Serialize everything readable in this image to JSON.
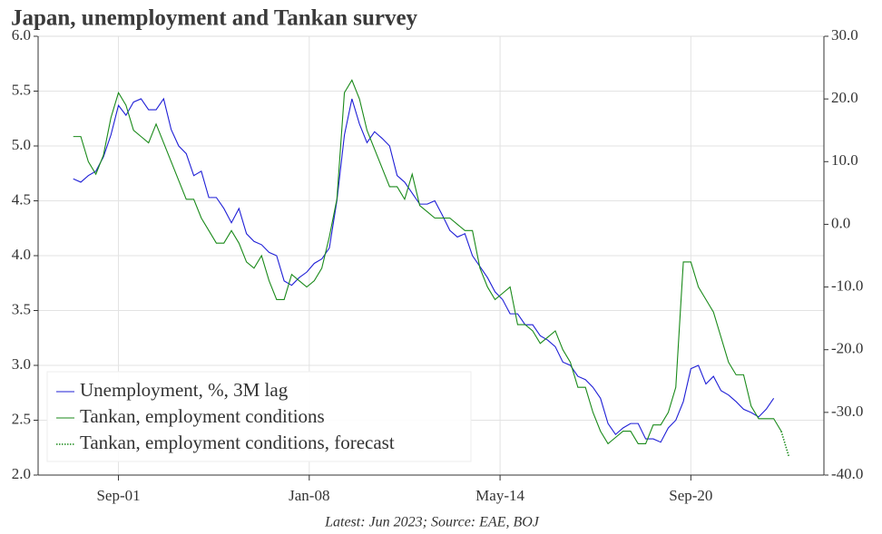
{
  "chart_data": {
    "type": "line",
    "title": "Japan, unemployment and Tankan survey",
    "source": "Latest: Jun 2023; Source: EAE, BOJ",
    "x": [
      "2000-03",
      "2000-06",
      "2000-09",
      "2000-12",
      "2001-03",
      "2001-06",
      "2001-09",
      "2001-12",
      "2002-03",
      "2002-06",
      "2002-09",
      "2002-12",
      "2003-03",
      "2003-06",
      "2003-09",
      "2003-12",
      "2004-03",
      "2004-06",
      "2004-09",
      "2004-12",
      "2005-03",
      "2005-06",
      "2005-09",
      "2005-12",
      "2006-03",
      "2006-06",
      "2006-09",
      "2006-12",
      "2007-03",
      "2007-06",
      "2007-09",
      "2007-12",
      "2008-03",
      "2008-06",
      "2008-09",
      "2008-12",
      "2009-03",
      "2009-06",
      "2009-09",
      "2009-12",
      "2010-03",
      "2010-06",
      "2010-09",
      "2010-12",
      "2011-03",
      "2011-06",
      "2011-09",
      "2011-12",
      "2012-03",
      "2012-06",
      "2012-09",
      "2012-12",
      "2013-03",
      "2013-06",
      "2013-09",
      "2013-12",
      "2014-03",
      "2014-06",
      "2014-09",
      "2014-12",
      "2015-03",
      "2015-06",
      "2015-09",
      "2015-12",
      "2016-03",
      "2016-06",
      "2016-09",
      "2016-12",
      "2017-03",
      "2017-06",
      "2017-09",
      "2017-12",
      "2018-03",
      "2018-06",
      "2018-09",
      "2018-12",
      "2019-03",
      "2019-06",
      "2019-09",
      "2019-12",
      "2020-03",
      "2020-06",
      "2020-09",
      "2020-12",
      "2021-03",
      "2021-06",
      "2021-09",
      "2021-12",
      "2022-03",
      "2022-06",
      "2022-09",
      "2022-12",
      "2023-03",
      "2023-06",
      "2023-09"
    ],
    "series": [
      {
        "name": "Unemployment, %, 3M lag",
        "color": "#1f1fd6",
        "axis": "y",
        "values": [
          4.7,
          4.67,
          4.73,
          4.77,
          4.9,
          5.1,
          5.37,
          5.28,
          5.4,
          5.43,
          5.33,
          5.33,
          5.43,
          5.15,
          5.0,
          4.93,
          4.73,
          4.77,
          4.53,
          4.53,
          4.43,
          4.3,
          4.43,
          4.2,
          4.13,
          4.1,
          4.03,
          4.0,
          3.77,
          3.73,
          3.8,
          3.85,
          3.93,
          3.97,
          4.07,
          4.5,
          5.1,
          5.43,
          5.2,
          5.03,
          5.13,
          5.07,
          5.0,
          4.73,
          4.67,
          4.57,
          4.47,
          4.47,
          4.5,
          4.37,
          4.23,
          4.17,
          4.2,
          4.0,
          3.9,
          3.8,
          3.67,
          3.6,
          3.47,
          3.47,
          3.37,
          3.37,
          3.27,
          3.23,
          3.17,
          3.03,
          3.0,
          2.9,
          2.87,
          2.8,
          2.7,
          2.47,
          2.37,
          2.43,
          2.47,
          2.47,
          2.33,
          2.33,
          2.3,
          2.43,
          2.5,
          2.67,
          2.97,
          3.0,
          2.83,
          2.9,
          2.77,
          2.73,
          2.67,
          2.6,
          2.57,
          2.53,
          2.6,
          2.7,
          null
        ]
      },
      {
        "name": "Tankan, employment conditions",
        "color": "#1a8a1a",
        "axis": "y2",
        "values": [
          14,
          14,
          10,
          8,
          11,
          17,
          21,
          19,
          15,
          14,
          13,
          16,
          13,
          10,
          7,
          4,
          4,
          1,
          -1,
          -3,
          -3,
          -1,
          -3,
          -6,
          -7,
          -5,
          -9,
          -12,
          -12,
          -8,
          -9,
          -10,
          -9,
          -7,
          -2,
          4,
          21,
          23,
          20,
          15,
          12,
          9,
          6,
          6,
          4,
          8,
          3,
          2,
          1,
          1,
          1,
          0,
          -1,
          -1,
          -7,
          -10,
          -12,
          -11,
          -10,
          -16,
          -16,
          -17,
          -19,
          -18,
          -17,
          -20,
          -22,
          -26,
          -26,
          -30,
          -33,
          -35,
          -34,
          -33,
          -33,
          -35,
          -35,
          -32,
          -32,
          -30,
          -26,
          -6,
          -6,
          -10,
          -12,
          -14,
          -18,
          -22,
          -24,
          -24,
          -29,
          -31,
          -31,
          -31,
          -33
        ]
      },
      {
        "name": "Tankan, employment conditions, forecast",
        "color": "#1a8a1a",
        "axis": "y2",
        "dotted": true,
        "x": [
          "2023-09",
          "2023-12"
        ],
        "values": [
          -33,
          -37
        ]
      }
    ],
    "xlim": [
      "1999-01",
      "2025-02"
    ],
    "xticks": [
      {
        "value": "2001-09",
        "label": "Sep-01"
      },
      {
        "value": "2008-01",
        "label": "Jan-08"
      },
      {
        "value": "2014-05",
        "label": "May-14"
      },
      {
        "value": "2020-09",
        "label": "Sep-20"
      }
    ],
    "ylim": [
      2,
      6
    ],
    "yticks": [
      {
        "value": 2,
        "label": "2.0"
      },
      {
        "value": 2.5,
        "label": "2.5"
      },
      {
        "value": 3,
        "label": "3.0"
      },
      {
        "value": 3.5,
        "label": "3.5"
      },
      {
        "value": 4,
        "label": "4.0"
      },
      {
        "value": 4.5,
        "label": "4.5"
      },
      {
        "value": 5,
        "label": "5.0"
      },
      {
        "value": 5.5,
        "label": "5.5"
      },
      {
        "value": 6,
        "label": "6.0"
      }
    ],
    "y2lim": [
      -40,
      30
    ],
    "y2ticks": [
      {
        "value": -40,
        "label": "-40.0"
      },
      {
        "value": -30,
        "label": "-30.0"
      },
      {
        "value": -20,
        "label": "-20.0"
      },
      {
        "value": -10,
        "label": "-10.0"
      },
      {
        "value": 0,
        "label": "0.0"
      },
      {
        "value": 10,
        "label": "10.0"
      },
      {
        "value": 20,
        "label": "20.0"
      },
      {
        "value": 30,
        "label": "30.0"
      }
    ],
    "grid": true,
    "legend": "lower-left"
  }
}
